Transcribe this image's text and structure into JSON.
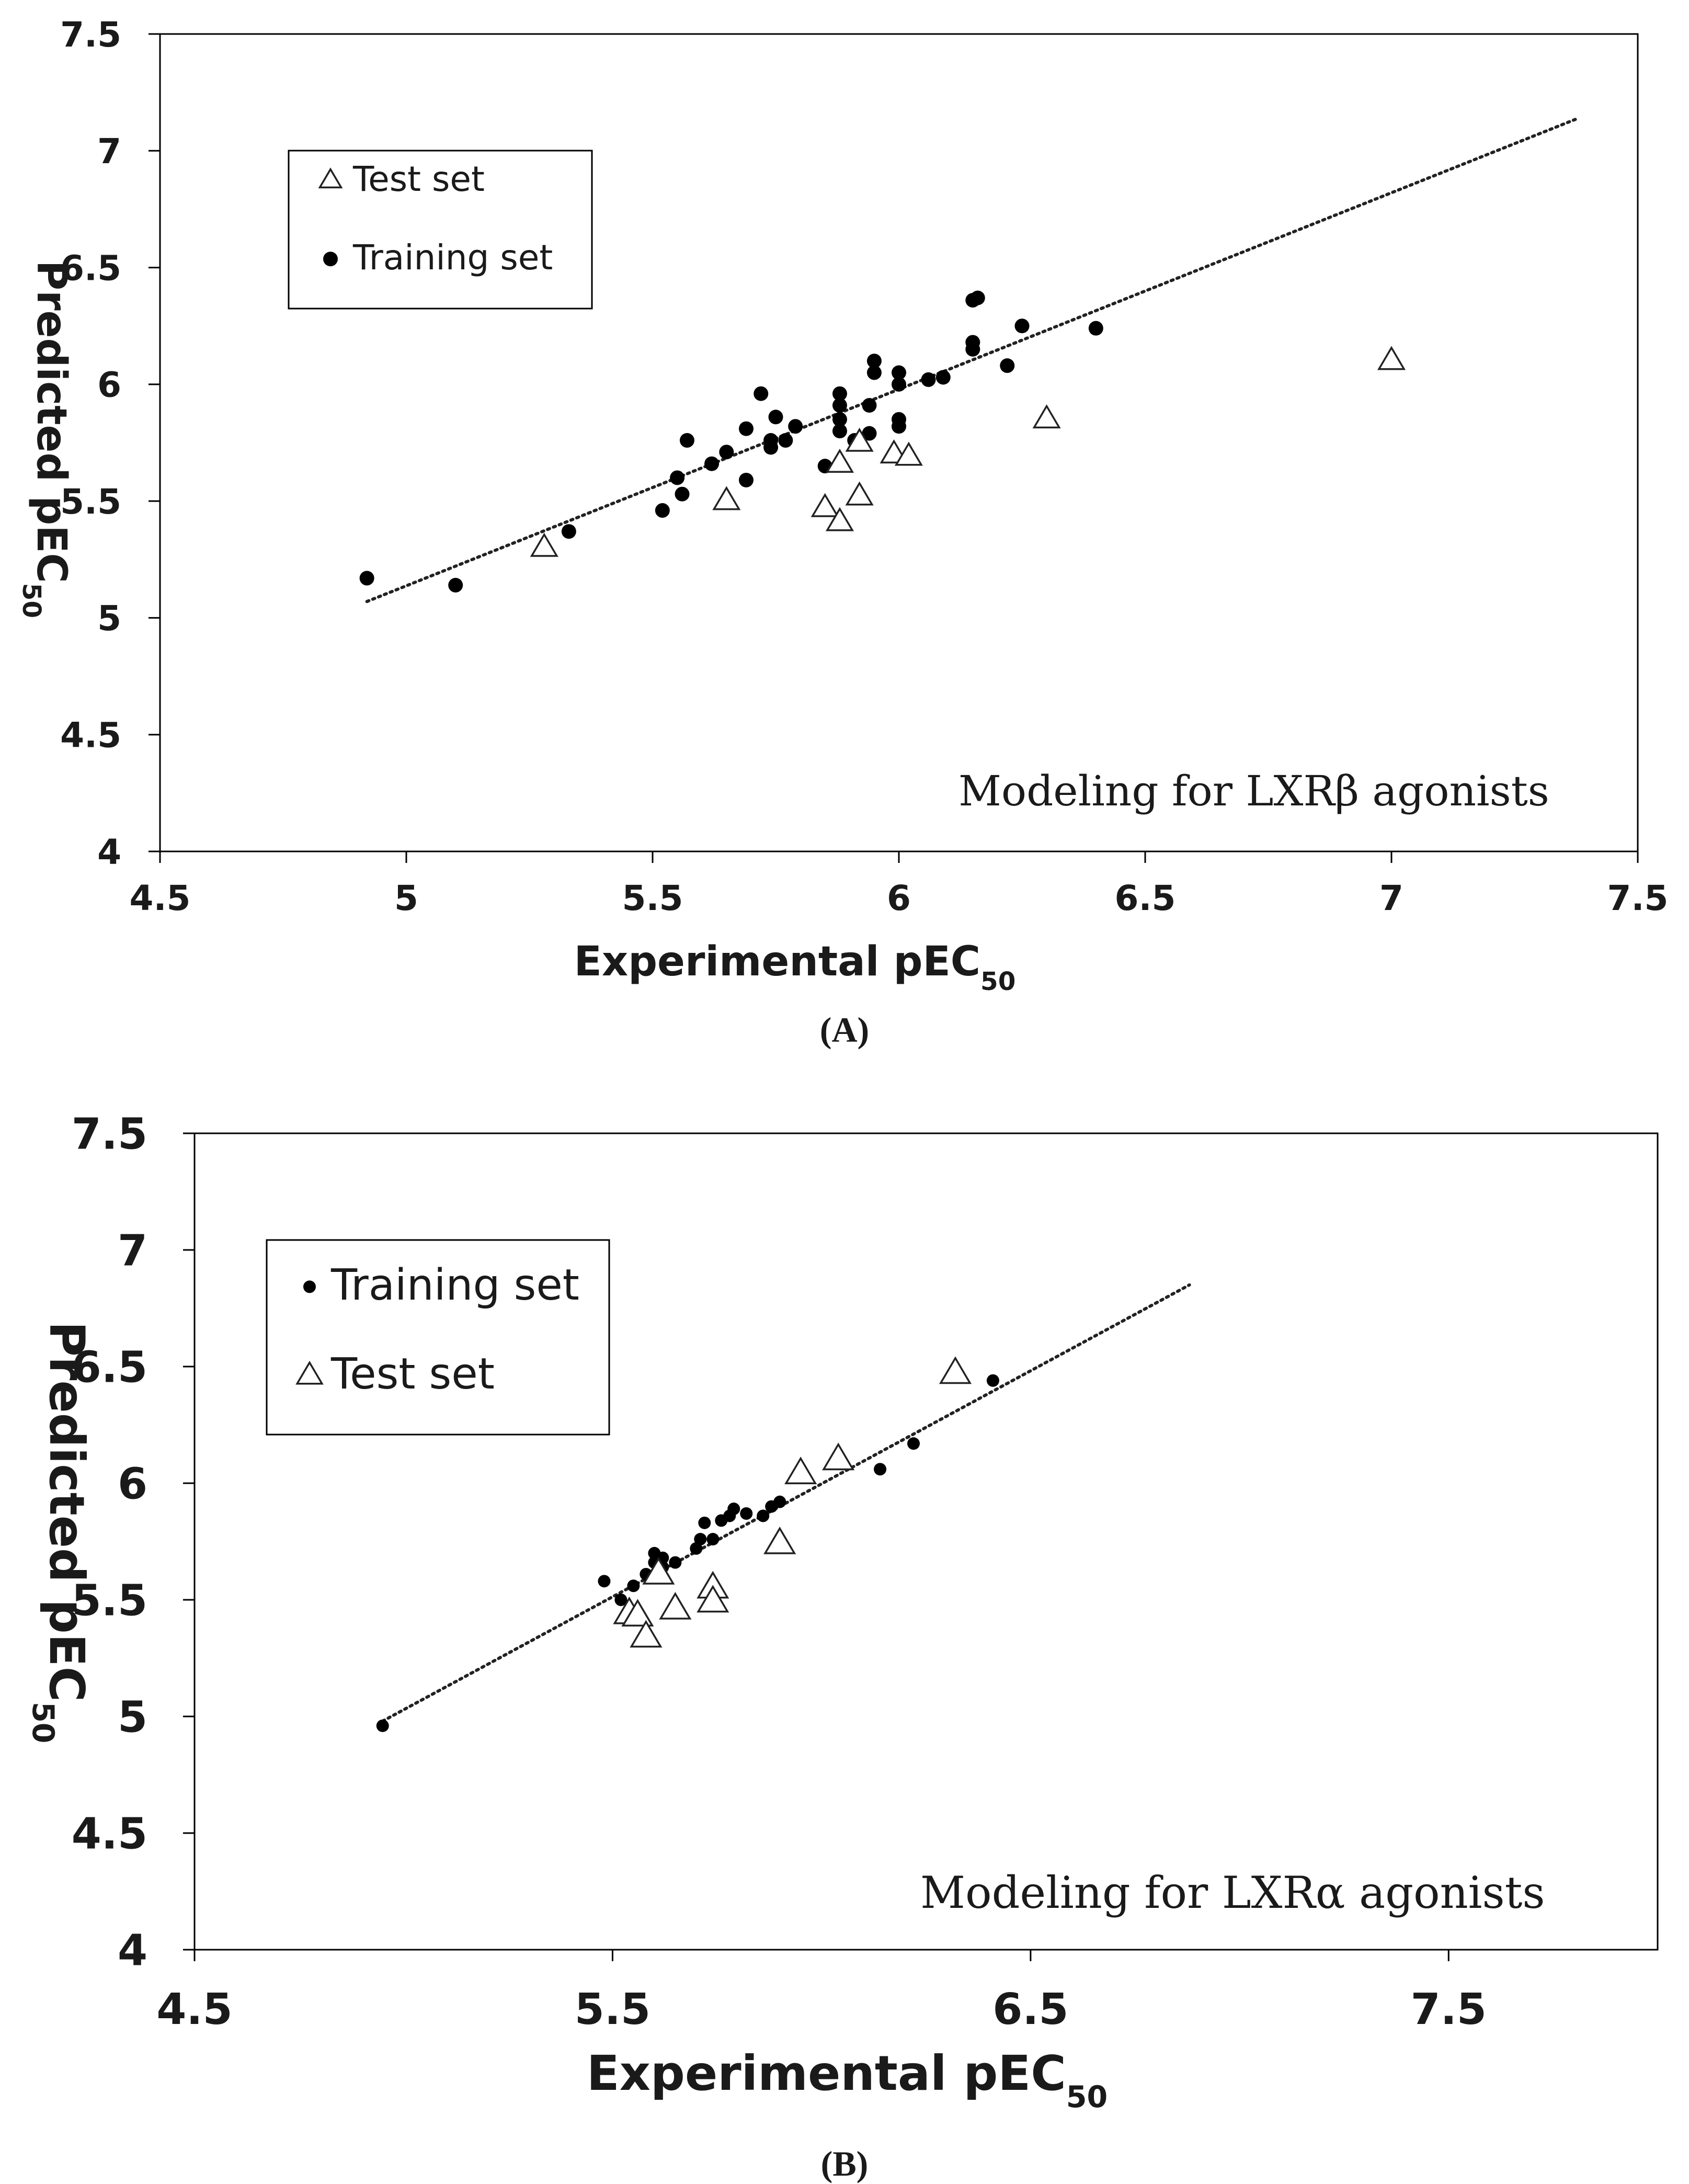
{
  "chart_data": [
    {
      "type": "scatter",
      "panel_label": "(A)",
      "xlabel": "Experimental  pEC",
      "xlabel_sub": "50",
      "ylabel": "Predicted pEC",
      "ylabel_sub": "50",
      "xlim": [
        4.5,
        7.5
      ],
      "ylim": [
        4,
        7.5
      ],
      "xticks": [
        "4.5",
        "5",
        "5.5",
        "6",
        "6.5",
        "7",
        "7.5"
      ],
      "yticks": [
        "4",
        "4.5",
        "5",
        "5.5",
        "6",
        "6.5",
        "7",
        "7.5"
      ],
      "annotation": "Modeling  for LXRβ agonists",
      "legend": [
        {
          "marker": "triangle",
          "label": "Test set"
        },
        {
          "marker": "dot",
          "label": "Training set"
        }
      ],
      "trendline": {
        "x": [
          4.92,
          7.38
        ],
        "y": [
          5.07,
          7.14
        ]
      },
      "series": [
        {
          "name": "Training set",
          "marker": "dot",
          "points": [
            [
              4.92,
              5.17
            ],
            [
              5.1,
              5.14
            ],
            [
              5.33,
              5.37
            ],
            [
              5.52,
              5.46
            ],
            [
              5.55,
              5.6
            ],
            [
              5.56,
              5.53
            ],
            [
              5.57,
              5.76
            ],
            [
              5.62,
              5.66
            ],
            [
              5.65,
              5.71
            ],
            [
              5.69,
              5.59
            ],
            [
              5.69,
              5.81
            ],
            [
              5.72,
              5.96
            ],
            [
              5.74,
              5.73
            ],
            [
              5.74,
              5.76
            ],
            [
              5.75,
              5.86
            ],
            [
              5.77,
              5.76
            ],
            [
              5.79,
              5.82
            ],
            [
              5.85,
              5.65
            ],
            [
              5.88,
              5.8
            ],
            [
              5.88,
              5.85
            ],
            [
              5.88,
              5.91
            ],
            [
              5.88,
              5.96
            ],
            [
              5.91,
              5.76
            ],
            [
              5.94,
              5.79
            ],
            [
              5.94,
              5.91
            ],
            [
              5.95,
              6.05
            ],
            [
              5.95,
              6.1
            ],
            [
              6.0,
              5.82
            ],
            [
              6.0,
              5.85
            ],
            [
              6.0,
              6.0
            ],
            [
              6.0,
              6.05
            ],
            [
              6.06,
              6.02
            ],
            [
              6.09,
              6.03
            ],
            [
              6.15,
              6.15
            ],
            [
              6.15,
              6.18
            ],
            [
              6.15,
              6.36
            ],
            [
              6.16,
              6.37
            ],
            [
              6.22,
              6.08
            ],
            [
              6.25,
              6.25
            ],
            [
              6.4,
              6.24
            ]
          ]
        },
        {
          "name": "Test set",
          "marker": "triangle",
          "points": [
            [
              5.28,
              5.3
            ],
            [
              5.65,
              5.5
            ],
            [
              5.85,
              5.47
            ],
            [
              5.88,
              5.41
            ],
            [
              5.88,
              5.66
            ],
            [
              5.92,
              5.52
            ],
            [
              5.92,
              5.75
            ],
            [
              5.99,
              5.7
            ],
            [
              6.02,
              5.69
            ],
            [
              6.3,
              5.85
            ],
            [
              7.0,
              6.1
            ]
          ]
        }
      ]
    },
    {
      "type": "scatter",
      "panel_label": "(B)",
      "xlabel": "Experimental pEC",
      "xlabel_sub": "50",
      "ylabel": "Predicted pEC",
      "ylabel_sub": "50",
      "xlim": [
        4.5,
        8.0
      ],
      "ylim": [
        4,
        7.5
      ],
      "xticks": [
        "4.5",
        "5.5",
        "6.5",
        "7.5"
      ],
      "xtick_values": [
        4.5,
        5.5,
        6.5,
        7.5
      ],
      "yticks": [
        "4",
        "4.5",
        "5",
        "5.5",
        "6",
        "6.5",
        "7",
        "7.5"
      ],
      "annotation": "Modeling for LXRα  agonists",
      "legend": [
        {
          "marker": "dot",
          "label": "Training set"
        },
        {
          "marker": "triangle",
          "label": "Test set"
        }
      ],
      "trendline": {
        "x": [
          4.95,
          6.88
        ],
        "y": [
          4.98,
          6.85
        ]
      },
      "series": [
        {
          "name": "Training set",
          "marker": "dot",
          "points": [
            [
              4.95,
              4.96
            ],
            [
              5.48,
              5.58
            ],
            [
              5.52,
              5.5
            ],
            [
              5.55,
              5.56
            ],
            [
              5.58,
              5.61
            ],
            [
              5.6,
              5.66
            ],
            [
              5.6,
              5.7
            ],
            [
              5.62,
              5.64
            ],
            [
              5.62,
              5.68
            ],
            [
              5.65,
              5.66
            ],
            [
              5.7,
              5.72
            ],
            [
              5.71,
              5.76
            ],
            [
              5.72,
              5.83
            ],
            [
              5.74,
              5.76
            ],
            [
              5.76,
              5.84
            ],
            [
              5.78,
              5.86
            ],
            [
              5.79,
              5.89
            ],
            [
              5.82,
              5.87
            ],
            [
              5.86,
              5.86
            ],
            [
              5.88,
              5.9
            ],
            [
              5.9,
              5.92
            ],
            [
              6.14,
              6.06
            ],
            [
              6.22,
              6.17
            ],
            [
              6.41,
              6.44
            ]
          ]
        },
        {
          "name": "Test set",
          "marker": "triangle",
          "points": [
            [
              5.54,
              5.44
            ],
            [
              5.56,
              5.43
            ],
            [
              5.58,
              5.34
            ],
            [
              5.61,
              5.61
            ],
            [
              5.65,
              5.46
            ],
            [
              5.74,
              5.55
            ],
            [
              5.74,
              5.49
            ],
            [
              5.9,
              5.74
            ],
            [
              5.95,
              6.04
            ],
            [
              6.04,
              6.1
            ],
            [
              6.32,
              6.47
            ]
          ]
        }
      ]
    }
  ]
}
